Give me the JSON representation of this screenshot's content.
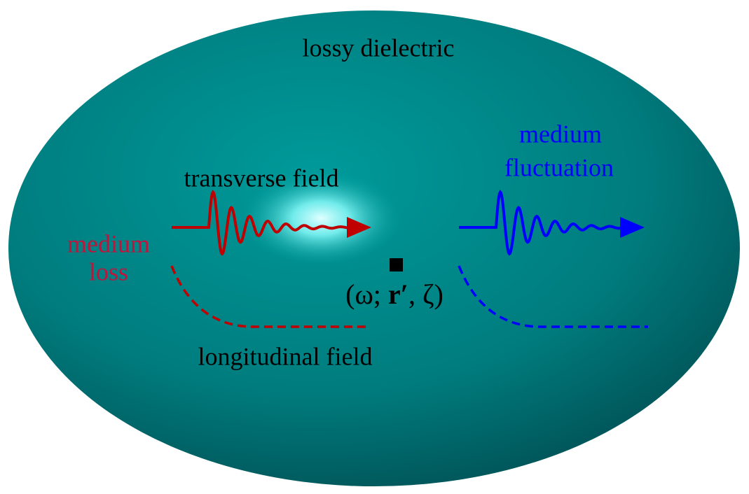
{
  "title": "lossy dielectric",
  "transverse_label": "transverse field",
  "longitudinal_label": "longitudinal field",
  "loss_label": [
    "medium",
    "loss"
  ],
  "fluctuation_label": [
    "medium",
    "fluctuation"
  ],
  "point_label": {
    "open": "(ω; ",
    "vector": "r′",
    "close": ", ζ)"
  }
}
